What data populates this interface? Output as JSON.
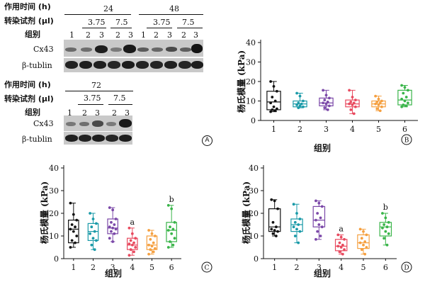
{
  "panelA": {
    "time_label": "作用时间 (h)",
    "reagent_label": "转染试剂 (μl)",
    "group_label": "组别",
    "cx43": "Cx43",
    "btublin": "β-tublin",
    "times_top": [
      "24",
      "48"
    ],
    "doses_top": [
      "3.75",
      "7.5",
      "3.75",
      "7.5"
    ],
    "groups_top": [
      "1",
      "2",
      "3",
      "2",
      "3",
      "1",
      "2",
      "3",
      "2",
      "3"
    ],
    "time_bottom": "72",
    "doses_bottom": [
      "3.75",
      "7.5"
    ],
    "groups_bottom": [
      "1",
      "2",
      "3",
      "2",
      "3"
    ],
    "letter": "A"
  },
  "chart_data": [
    {
      "type": "box",
      "panel": "B",
      "xlabel": "组别",
      "ylabel": "杨氏模量 (kPa)",
      "ylim": [
        0,
        40
      ],
      "yticks": [
        0,
        10,
        20,
        30,
        40
      ],
      "categories": [
        "1",
        "2",
        "3",
        "4",
        "5",
        "6"
      ],
      "colors": [
        "#111111",
        "#1a9aa8",
        "#7b48a8",
        "#e84a5f",
        "#f5a040",
        "#3ab54a"
      ],
      "series": [
        {
          "q1": 5.5,
          "median": 9.5,
          "q3": 15,
          "min": 4.5,
          "max": 20,
          "points": [
            20,
            17.5,
            15,
            12,
            10,
            9,
            7,
            6,
            5.5,
            5,
            4.5
          ]
        },
        {
          "q1": 7,
          "median": 8.5,
          "q3": 10,
          "min": 6.5,
          "max": 14,
          "points": [
            14,
            12.5,
            10,
            9,
            8.5,
            8,
            7.5,
            7,
            6.5
          ]
        },
        {
          "q1": 7.5,
          "median": 9,
          "q3": 11.5,
          "min": 5.5,
          "max": 15.5,
          "points": [
            15.5,
            13,
            11.5,
            10.5,
            9.5,
            9,
            8.5,
            7.5,
            6.5,
            5.5
          ]
        },
        {
          "q1": 7,
          "median": 8.5,
          "q3": 10.5,
          "min": 3.5,
          "max": 15.5,
          "points": [
            15.5,
            12,
            10.5,
            9.5,
            9,
            8.5,
            8,
            7,
            5.5,
            3.5
          ]
        },
        {
          "q1": 7,
          "median": 8.5,
          "q3": 10,
          "min": 5,
          "max": 12.5,
          "points": [
            12.5,
            11,
            10,
            9.5,
            9,
            8.5,
            8,
            7,
            6,
            5
          ]
        },
        {
          "q1": 8,
          "median": 10.5,
          "q3": 15.5,
          "min": 7,
          "max": 18,
          "points": [
            18,
            17,
            15.5,
            14,
            12,
            11,
            10,
            9,
            8,
            7.5,
            7
          ]
        }
      ],
      "annotations": [],
      "letter": "B"
    },
    {
      "type": "box",
      "panel": "C",
      "xlabel": "组别",
      "ylabel": "杨氏模量 (kPa)",
      "ylim": [
        0,
        40
      ],
      "yticks": [
        0,
        10,
        20,
        30,
        40
      ],
      "categories": [
        "1",
        "2",
        "3",
        "4",
        "5",
        "6"
      ],
      "colors": [
        "#111111",
        "#1a9aa8",
        "#7b48a8",
        "#e84a5f",
        "#f5a040",
        "#3ab54a"
      ],
      "series": [
        {
          "q1": 7,
          "median": 13,
          "q3": 17,
          "min": 5,
          "max": 24.5,
          "points": [
            24.5,
            19.5,
            17,
            15,
            14,
            13,
            12,
            10,
            8,
            7,
            5
          ]
        },
        {
          "q1": 8,
          "median": 12,
          "q3": 15.5,
          "min": 4,
          "max": 20,
          "points": [
            20,
            17.5,
            15.5,
            14,
            12,
            11,
            9,
            8,
            6,
            4
          ]
        },
        {
          "q1": 11,
          "median": 13.5,
          "q3": 17.5,
          "min": 7.5,
          "max": 22.5,
          "points": [
            22.5,
            21.5,
            17.5,
            16,
            15,
            14,
            13.5,
            13,
            12,
            11,
            9,
            7.5
          ]
        },
        {
          "q1": 4,
          "median": 6,
          "q3": 9,
          "min": 1.5,
          "max": 13.5,
          "points": [
            13.5,
            11,
            9,
            8,
            7,
            6.5,
            6,
            5,
            4,
            3,
            1.5
          ]
        },
        {
          "q1": 4,
          "median": 6,
          "q3": 10,
          "min": 2,
          "max": 12.5,
          "points": [
            12.5,
            11,
            10,
            8.5,
            7,
            6,
            5.5,
            4.5,
            4,
            3,
            2
          ]
        },
        {
          "q1": 7.5,
          "median": 12.5,
          "q3": 16,
          "min": 5,
          "max": 23.5,
          "points": [
            23.5,
            22,
            16,
            14,
            13,
            12.5,
            11,
            9,
            7.5,
            6,
            5
          ]
        }
      ],
      "annotations": [
        {
          "group": 4,
          "text": "a"
        },
        {
          "group": 6,
          "text": "b"
        }
      ],
      "letter": "C"
    },
    {
      "type": "box",
      "panel": "D",
      "xlabel": "组别",
      "ylabel": "杨氏模量 (kPa)",
      "ylim": [
        0,
        40
      ],
      "yticks": [
        0,
        10,
        20,
        30,
        40
      ],
      "categories": [
        "1",
        "2",
        "3",
        "4",
        "5",
        "6"
      ],
      "colors": [
        "#111111",
        "#1a9aa8",
        "#7b48a8",
        "#e84a5f",
        "#f5a040",
        "#3ab54a"
      ],
      "series": [
        {
          "q1": 12,
          "median": 14,
          "q3": 22,
          "min": 10,
          "max": 26,
          "points": [
            26,
            25.5,
            22,
            16,
            14,
            13,
            12.5,
            12,
            11,
            10
          ]
        },
        {
          "q1": 12,
          "median": 15,
          "q3": 17.5,
          "min": 7,
          "max": 24,
          "points": [
            24,
            20,
            17.5,
            16,
            15,
            14,
            13,
            12,
            10,
            7
          ]
        },
        {
          "q1": 14,
          "median": 17,
          "q3": 23,
          "min": 8.5,
          "max": 25.5,
          "points": [
            25.5,
            24.5,
            23,
            20,
            18,
            17,
            15,
            14,
            12,
            10,
            8.5
          ]
        },
        {
          "q1": 3.5,
          "median": 5.5,
          "q3": 8.5,
          "min": 2,
          "max": 10.5,
          "points": [
            10.5,
            9.5,
            8.5,
            7,
            6,
            5.5,
            5,
            4,
            3,
            2
          ]
        },
        {
          "q1": 4.5,
          "median": 7,
          "q3": 10.5,
          "min": 2,
          "max": 13,
          "points": [
            13,
            12,
            10.5,
            9,
            7.5,
            7,
            6,
            5,
            4,
            2
          ]
        },
        {
          "q1": 10,
          "median": 14,
          "q3": 16,
          "min": 6,
          "max": 20,
          "points": [
            20,
            18,
            16,
            15,
            14,
            13.5,
            12,
            11,
            9,
            6
          ]
        }
      ],
      "annotations": [
        {
          "group": 4,
          "text": "a"
        },
        {
          "group": 6,
          "text": "b"
        }
      ],
      "letter": "D"
    }
  ]
}
